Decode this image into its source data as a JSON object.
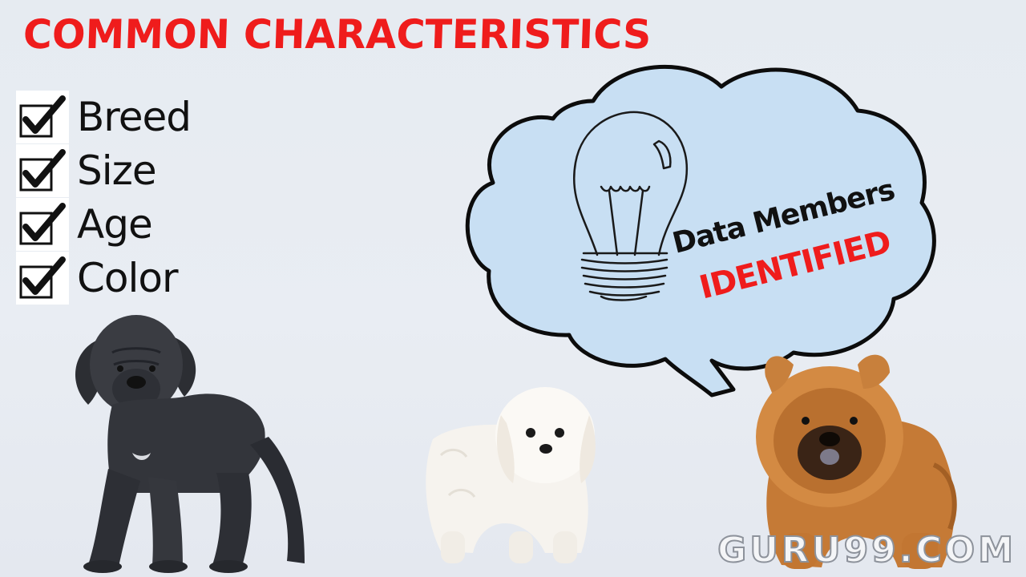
{
  "slide": {
    "title": "COMMON CHARACTERISTICS",
    "accent_color": "#ef1c1c"
  },
  "checklist": {
    "items": [
      {
        "label": "Breed",
        "checked": true
      },
      {
        "label": "Size",
        "checked": true
      },
      {
        "label": "Age",
        "checked": true
      },
      {
        "label": "Color",
        "checked": true
      }
    ]
  },
  "thought_bubble": {
    "icon": "lightbulb-icon",
    "line1": "Data Members",
    "line2": "IDENTIFIED",
    "fill_color": "#c8dff3"
  },
  "images": {
    "dogs": [
      "black-mastiff-puppy",
      "white-maltese-puppy",
      "chow-chow-puppy"
    ]
  },
  "watermark": {
    "text": "GURU99.COM"
  }
}
